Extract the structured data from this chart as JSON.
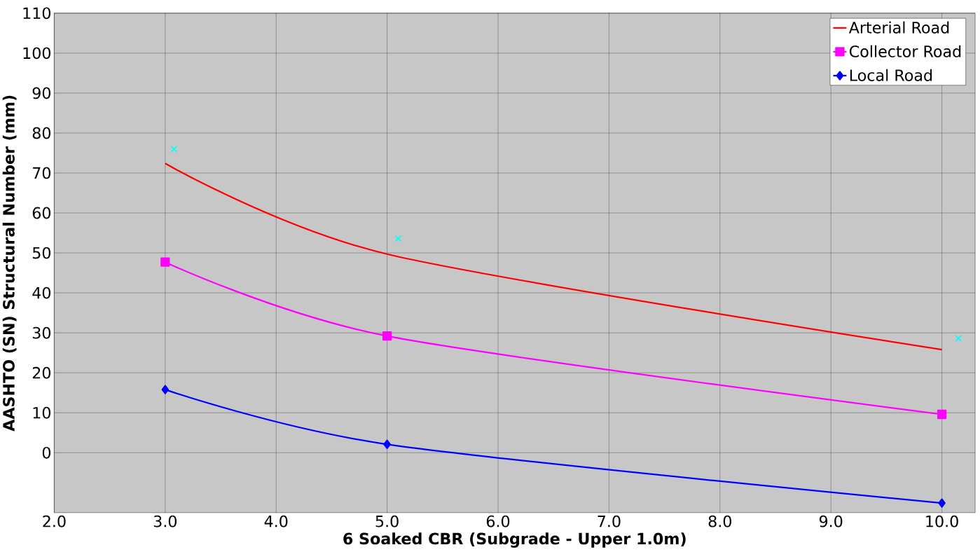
{
  "chart_data": {
    "type": "line",
    "xlabel": "6 Soaked CBR (Subgrade - Upper 1.0m)",
    "ylabel": "AASHTO (SN) Structural Number (mm)",
    "xlim": [
      2,
      10.3
    ],
    "ylim": [
      -15,
      110
    ],
    "xticks": [
      {
        "value": 2,
        "label": "2.0"
      },
      {
        "value": 3,
        "label": "3.0"
      },
      {
        "value": 4,
        "label": "4.0"
      },
      {
        "value": 5,
        "label": "5.0"
      },
      {
        "value": 6,
        "label": "6.0"
      },
      {
        "value": 7,
        "label": "7.0"
      },
      {
        "value": 8,
        "label": "8.0"
      },
      {
        "value": 9,
        "label": "9.0"
      },
      {
        "value": 10,
        "label": "10.0"
      }
    ],
    "yticks": [
      0,
      10,
      20,
      30,
      40,
      50,
      60,
      70,
      80,
      90,
      100,
      110
    ],
    "grid": true,
    "legend": "top right",
    "series": [
      {
        "name": "Arterial Road",
        "color": "#ff0000",
        "x": [
          3,
          5,
          10
        ],
        "values": [
          72.4,
          49.7,
          25.8
        ],
        "marker": "none"
      },
      {
        "name": "Collector Road",
        "color": "#ff00ff",
        "x": [
          3,
          5,
          10
        ],
        "values": [
          47.7,
          29.2,
          9.6
        ],
        "marker": "square"
      },
      {
        "name": "Local Road",
        "color": "#0000ff",
        "x": [
          3,
          5,
          10
        ],
        "values": [
          15.8,
          2.1,
          -12.6
        ],
        "marker": "diamond"
      },
      {
        "type": "scatter",
        "color": "#00ffff",
        "x": [
          3.08,
          5.1,
          10.15
        ],
        "values": [
          76,
          53.6,
          28.6
        ],
        "marker": "cross"
      }
    ]
  }
}
